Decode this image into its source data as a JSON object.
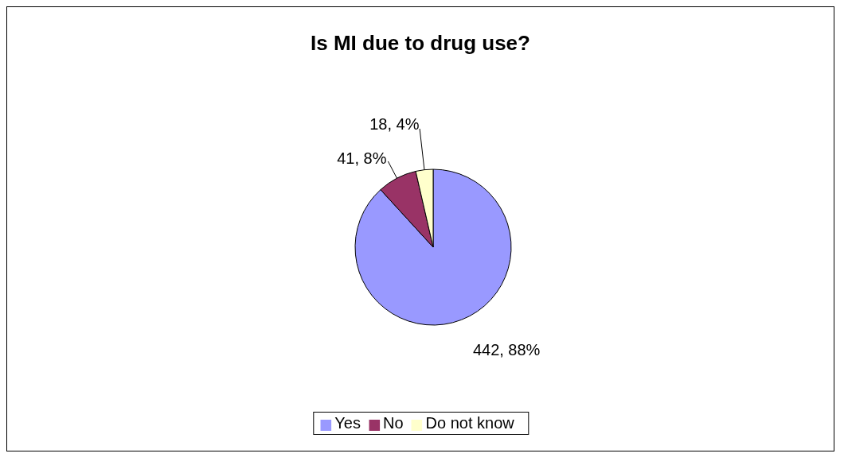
{
  "chart_data": {
    "type": "pie",
    "title": "Is MI due to drug use?",
    "categories": [
      "Yes",
      "No",
      "Do not know"
    ],
    "values": [
      442,
      41,
      18
    ],
    "colors": [
      "#9999ff",
      "#993366",
      "#ffffcc"
    ],
    "value_labels": [
      "442, 88%",
      "41, 8%",
      "18, 4%"
    ],
    "legend": "bottom"
  }
}
